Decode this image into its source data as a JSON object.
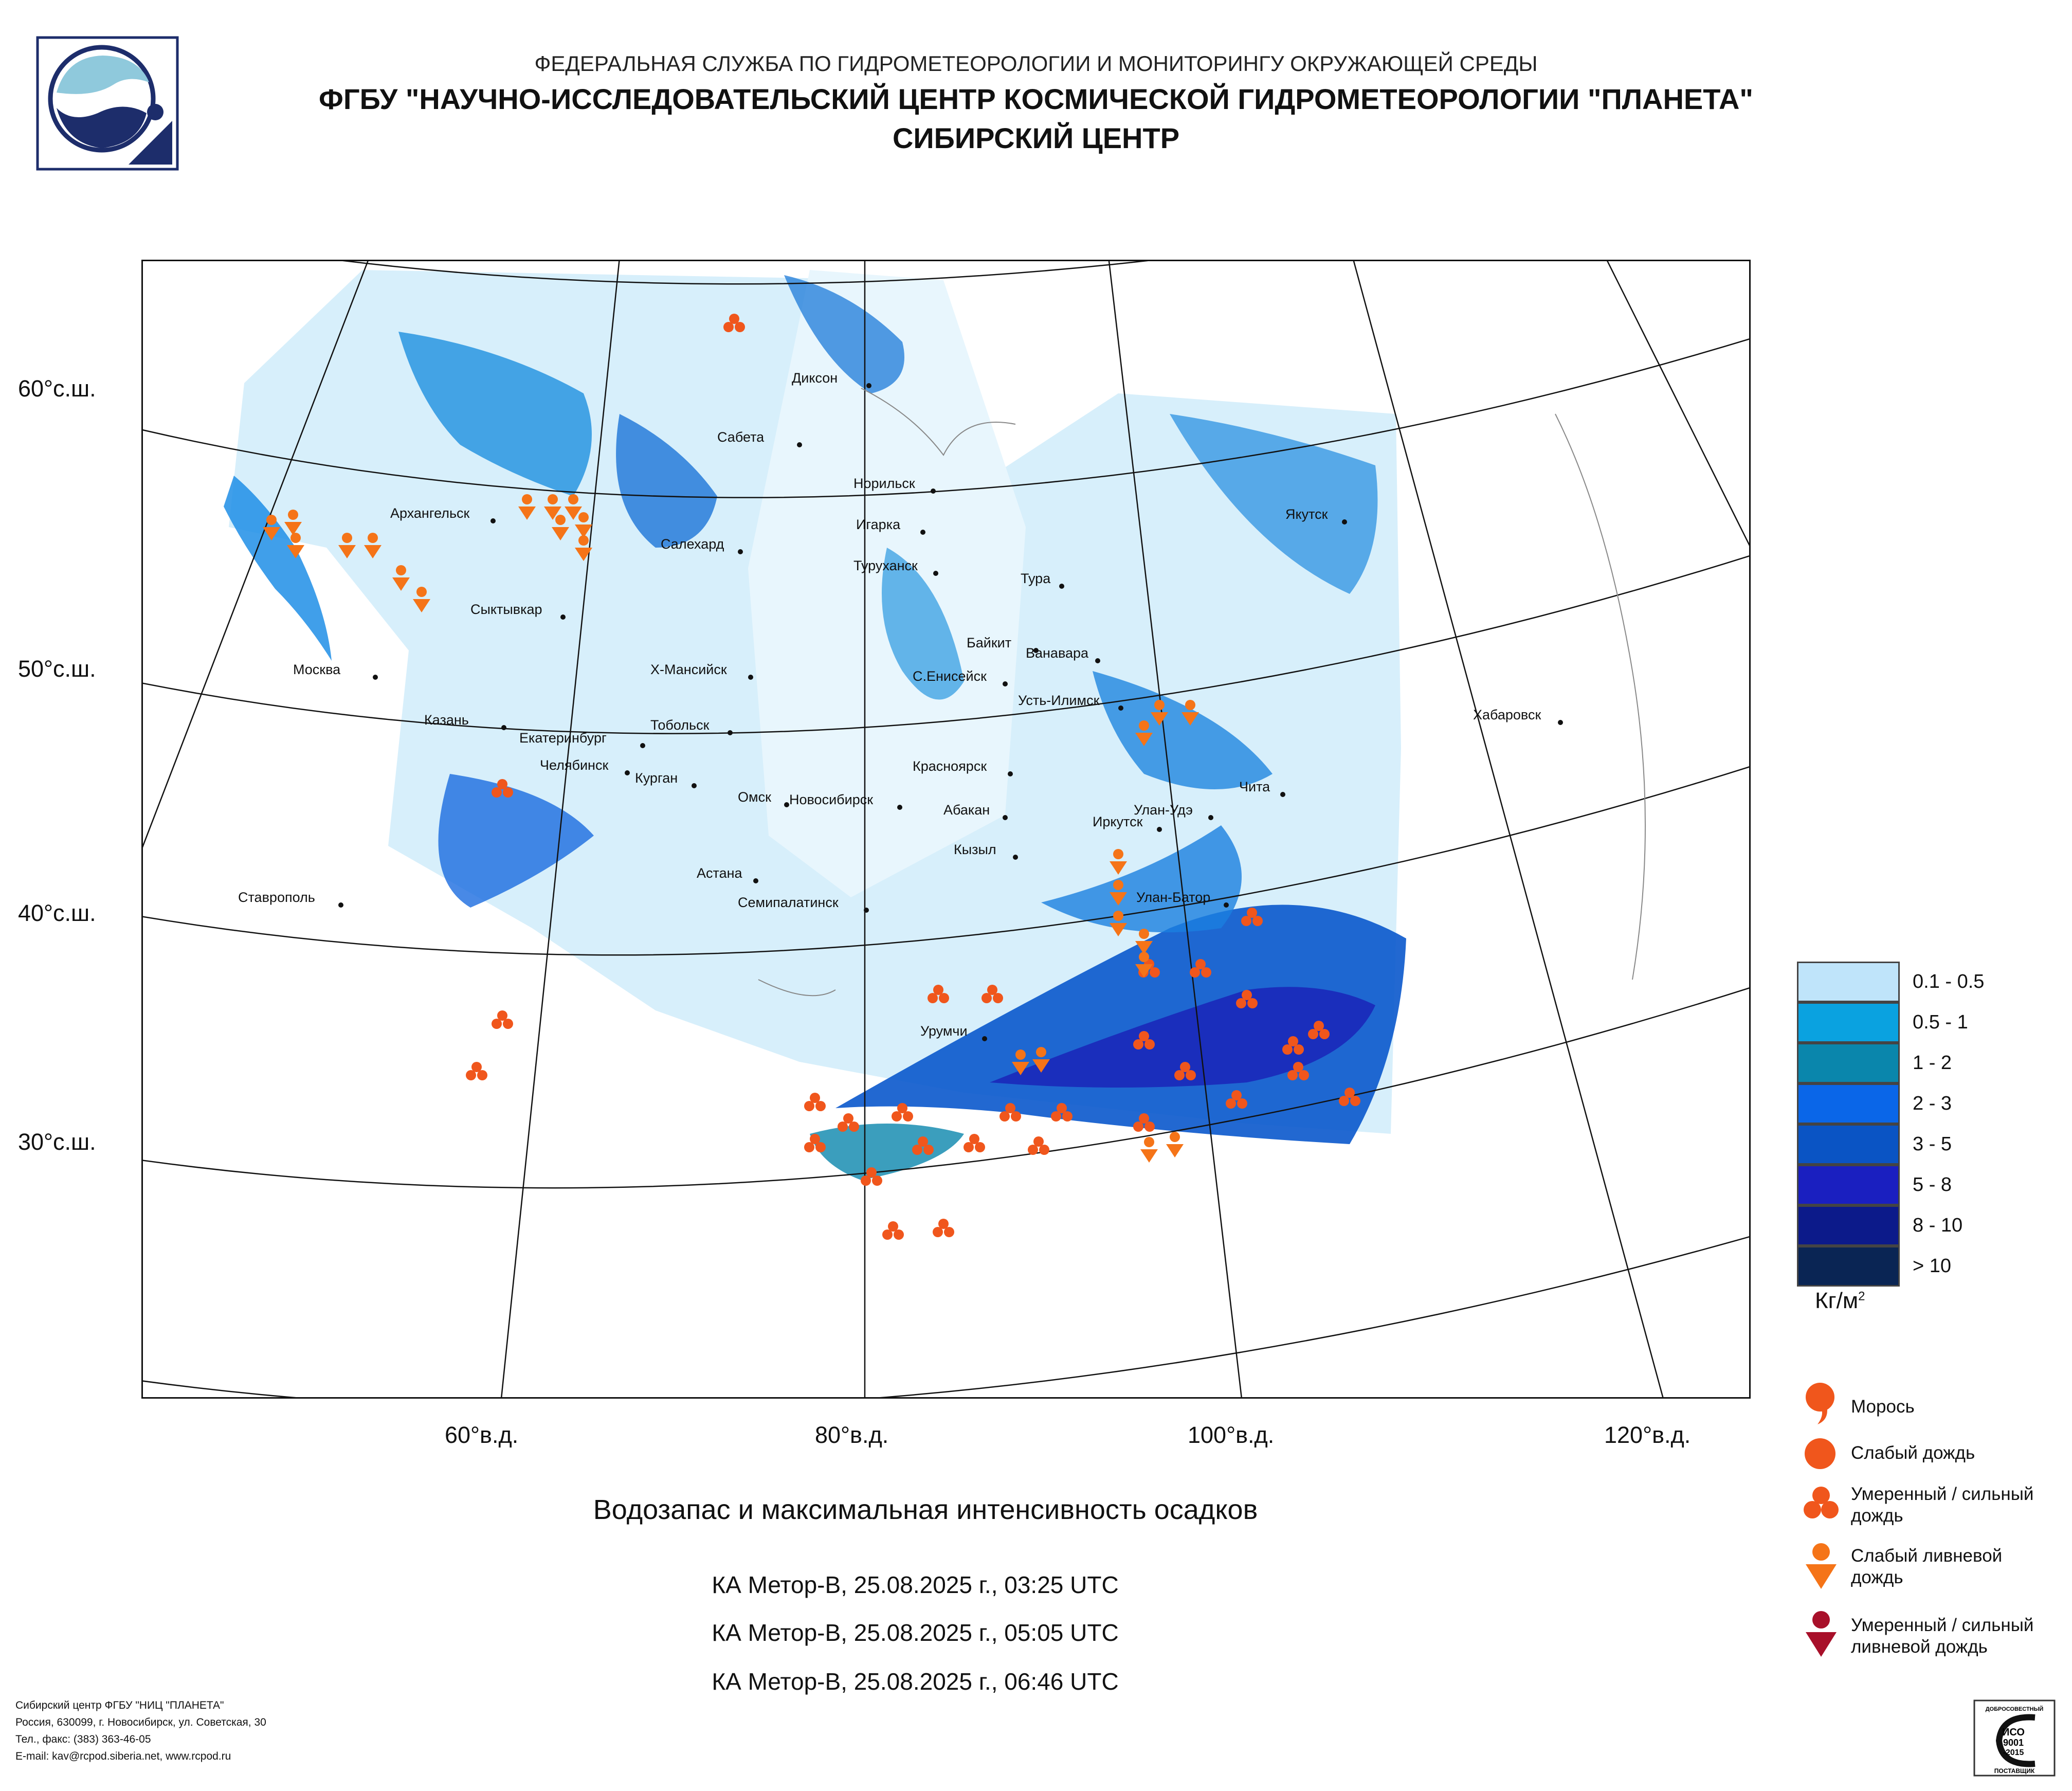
{
  "header": {
    "line1": "ФЕДЕРАЛЬНАЯ СЛУЖБА ПО ГИДРОМЕТЕОРОЛОГИИ И МОНИТОРИНГУ ОКРУЖАЮЩЕЙ СРЕДЫ",
    "line2": "ФГБУ \"НАУЧНО-ИССЛЕДОВАТЕЛЬСКИЙ ЦЕНТР КОСМИЧЕСКОЙ ГИДРОМЕТЕОРОЛОГИИ \"ПЛАНЕТА\"",
    "line3": "СИБИРСКИЙ ЦЕНТР"
  },
  "map": {
    "title": "Водозапас и максимальная интенсивность осадков",
    "lat_labels": [
      "60°с.ш.",
      "50°с.ш.",
      "40°с.ш.",
      "30°с.ш."
    ],
    "lon_labels": [
      "60°в.д.",
      "80°в.д.",
      "100°в.д.",
      "120°в.д."
    ],
    "cities": [
      "Диксон",
      "Сабета",
      "Норильск",
      "Архангельск",
      "Якутск",
      "Игарка",
      "Салехард",
      "Туруханск",
      "Тура",
      "Сыктывкар",
      "Байкит",
      "Ванавара",
      "Москва",
      "Х-Мансийск",
      "С.Енисейск",
      "Усть-Илимск",
      "Хабаровск",
      "Казань",
      "Тобольск",
      "Екатеринбург",
      "Челябинск",
      "Красноярск",
      "Чита",
      "Курган",
      "Омск",
      "Новосибирск",
      "Абакан",
      "Улан-Удэ",
      "Иркутск",
      "Кызыл",
      "Астана",
      "Ставрополь",
      "Улан-Батор",
      "Семипалатинск",
      "Урумчи"
    ]
  },
  "legend": {
    "scale": [
      {
        "label": "0.1 - 0.5",
        "color": "#bfe4fa"
      },
      {
        "label": "0.5 - 1",
        "color": "#0aa2e0"
      },
      {
        "label": "1 - 2",
        "color": "#0a86ac"
      },
      {
        "label": "2 - 3",
        "color": "#0a66e8"
      },
      {
        "label": "3 - 5",
        "color": "#0a54c4"
      },
      {
        "label": "5 - 8",
        "color": "#1a1fc0"
      },
      {
        "label": "8 - 10",
        "color": "#0c1a8a"
      },
      {
        "label": "> 10",
        "color": "#0a2554"
      }
    ],
    "unit": "Кг/м",
    "unit_sup": "2",
    "symbols": [
      {
        "label": "Морось",
        "color": "#f0561c"
      },
      {
        "label": "Слабый дождь",
        "color": "#f0561c"
      },
      {
        "label": "Умеренный / сильный дождь",
        "color": "#f0561c"
      },
      {
        "label": "Слабый ливневой дождь",
        "color": "#f57418"
      },
      {
        "label": "Умеренный / сильный ливневой дождь",
        "color": "#a8102a"
      }
    ]
  },
  "passes": [
    "КА Метор-В, 25.08.2025 г., 03:25 UTC",
    "КА Метор-В, 25.08.2025 г., 05:05 UTC",
    "КА Метор-В, 25.08.2025 г., 06:46 UTC"
  ],
  "footer": {
    "line1": "Сибирский центр ФГБУ \"НИЦ \"ПЛАНЕТА\"",
    "line2": "Россия, 630099, г. Новосибирск, ул. Советская, 30",
    "line3": "Тел., факс: (383) 363-46-05",
    "line4": "E-mail: kav@rcpod.siberia.net, www.rcpod.ru"
  },
  "cert": {
    "top": "ДОБРОСОВЕСТНЫЙ",
    "lines": [
      "ИСО",
      "9001",
      "-2015"
    ],
    "bottom": "ПОСТАВЩИК"
  }
}
